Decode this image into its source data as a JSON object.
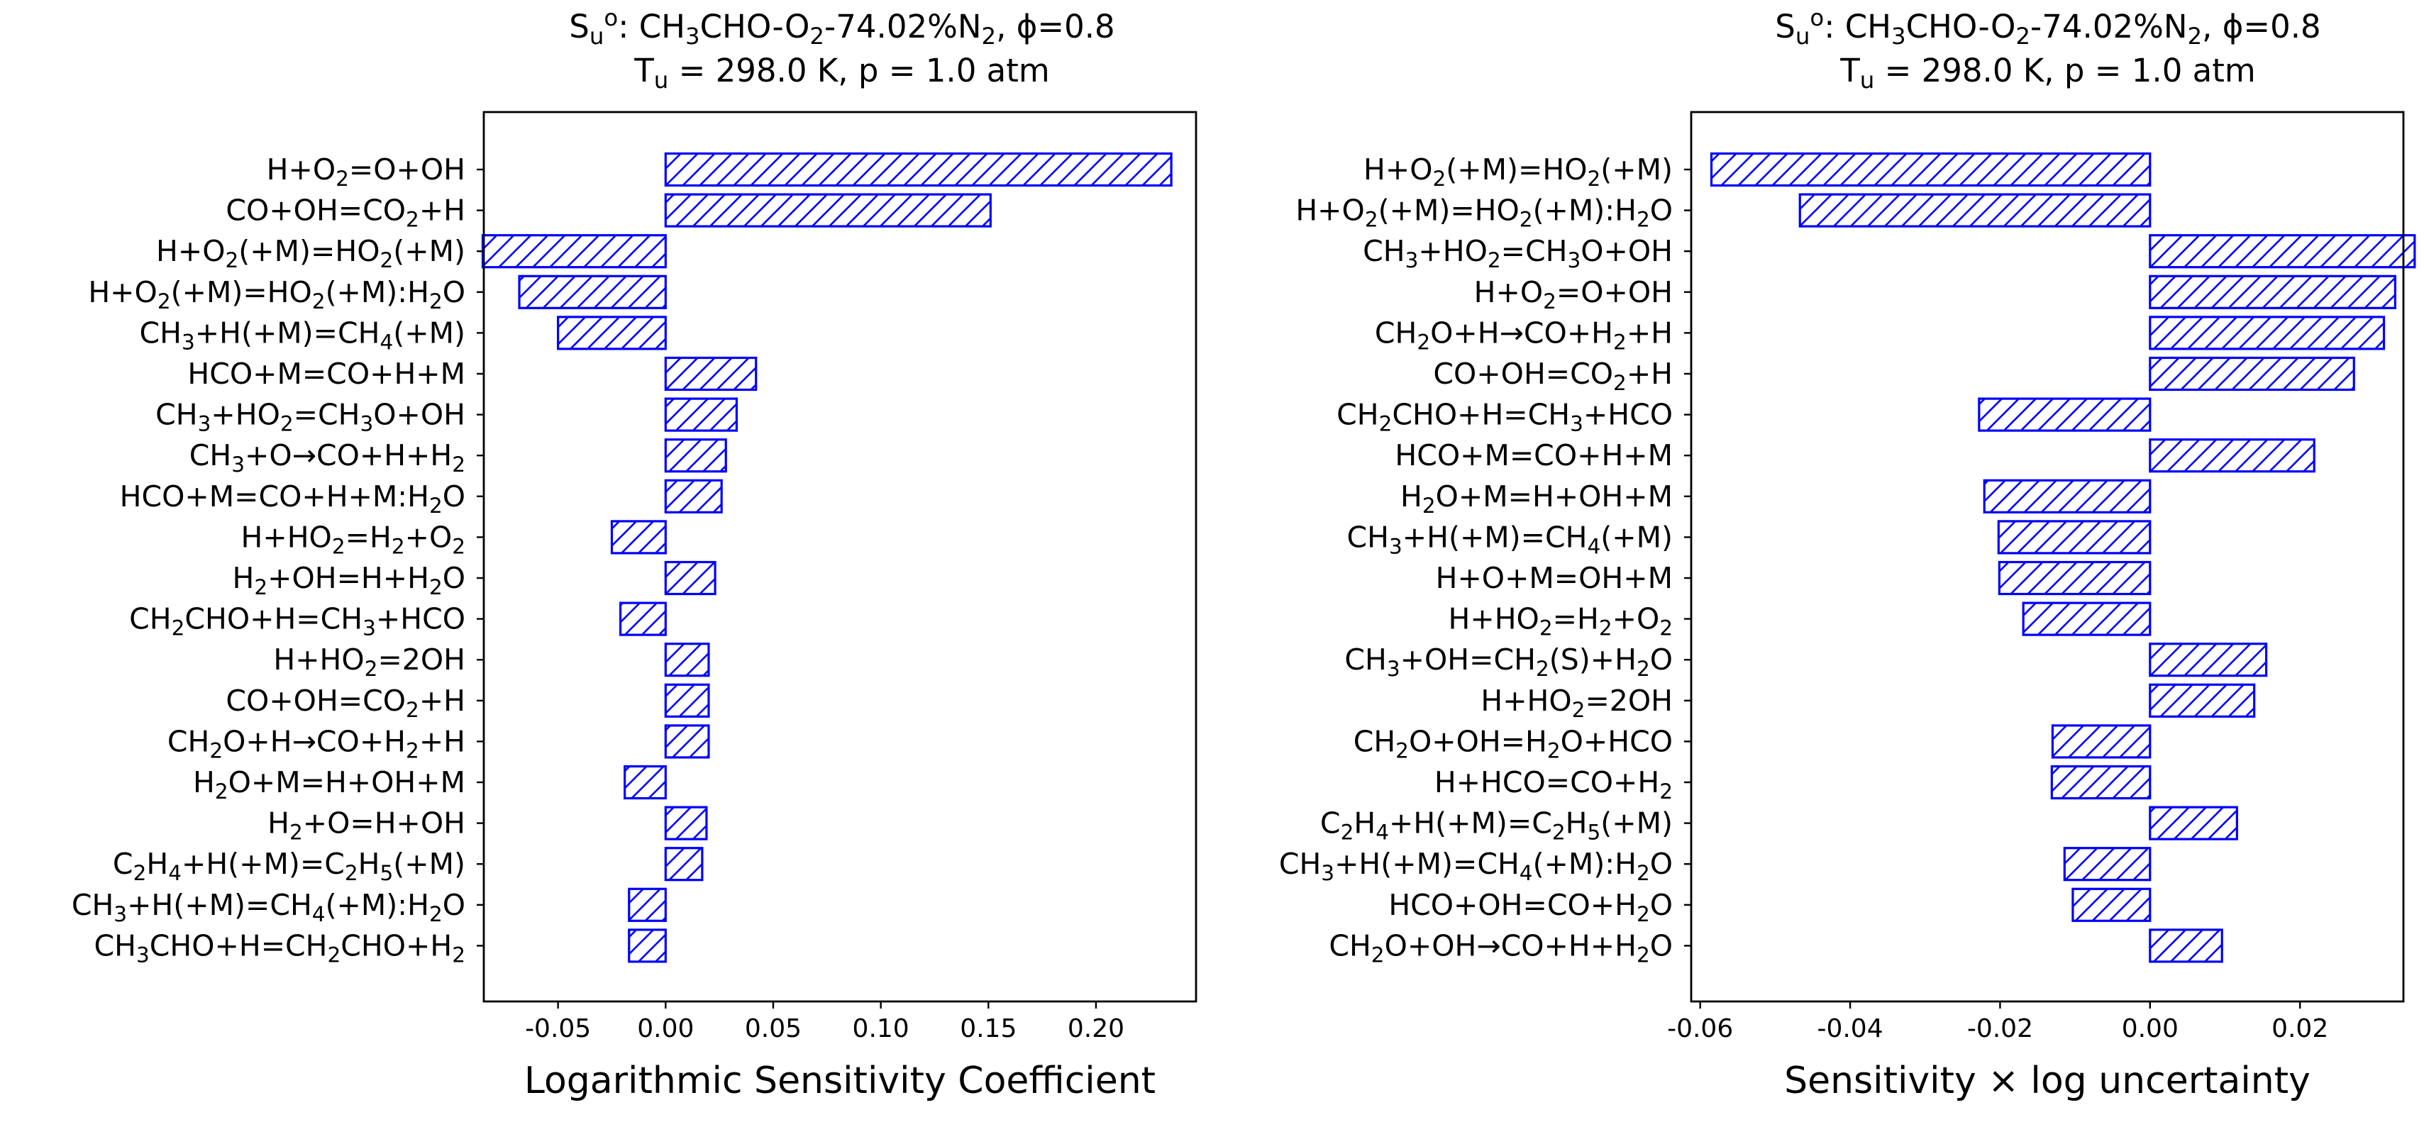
{
  "chart_data": [
    {
      "type": "bar",
      "orientation": "horizontal",
      "title_line1": "S_u^o: CH_3CHO-O_2-74.02%N_2, ϕ=0.8",
      "title_line2": "T_u = 298.0 K, p = 1.0 atm",
      "xlabel": "Logarithmic Sensitivity Coefficient",
      "ylabel": "",
      "xlim": [
        -0.0845,
        0.2465
      ],
      "xticks": [
        -0.05,
        0.0,
        0.05,
        0.1,
        0.15,
        0.2
      ],
      "xtick_labels": [
        "-0.05",
        "0.00",
        "0.05",
        "0.10",
        "0.15",
        "0.20"
      ],
      "bar_color": "#0000ff",
      "hatch": "diagonal",
      "grid": false,
      "categories": [
        "H+O_2=O+OH",
        "CO+OH=CO_2+H",
        "H+O_2(+M)=HO_2(+M)",
        "H+O_2(+M)=HO_2(+M):H_2O",
        "CH_3+H(+M)=CH_4(+M)",
        "HCO+M=CO+H+M",
        "CH_3+HO_2=CH_3O+OH",
        "CH_3+O→CO+H+H_2",
        "HCO+M=CO+H+M:H_2O",
        "H+HO_2=H_2+O_2",
        "H_2+OH=H+H_2O",
        "CH_2CHO+H=CH_3+HCO",
        "H+HO_2=2OH",
        "CO+OH=CO_2+H",
        "CH_2O+H→CO+H_2+H",
        "H_2O+M=H+OH+M",
        "H_2+O=H+OH",
        "C_2H_4+H(+M)=C_2H_5(+M)",
        "CH_3+H(+M)=CH_4(+M):H_2O",
        "CH_3CHO+H=CH_2CHO+H_2"
      ],
      "values": [
        0.235,
        0.151,
        -0.085,
        -0.068,
        -0.05,
        0.042,
        0.033,
        0.028,
        0.026,
        -0.025,
        0.023,
        -0.021,
        0.02,
        0.02,
        0.02,
        -0.019,
        0.019,
        0.017,
        -0.017,
        -0.017
      ]
    },
    {
      "type": "bar",
      "orientation": "horizontal",
      "title_line1": "S_u^o: CH_3CHO-O_2-74.02%N_2, ϕ=0.8",
      "title_line2": "T_u = 298.0 K, p = 1.0 atm",
      "xlabel": "Sensitivity × log uncertainty",
      "ylabel": "",
      "xlim": [
        -0.0612,
        0.0338
      ],
      "xticks": [
        -0.06,
        -0.04,
        -0.02,
        0.0,
        0.02
      ],
      "xtick_labels": [
        "-0.06",
        "-0.04",
        "-0.02",
        "0.00",
        "0.02"
      ],
      "bar_color": "#0000ff",
      "hatch": "diagonal",
      "grid": false,
      "categories": [
        "H+O_2(+M)=HO_2(+M)",
        "H+O_2(+M)=HO_2(+M):H_2O",
        "CH_3+HO_2=CH_3O+OH",
        "H+O_2=O+OH",
        "CH_2O+H→CO+H_2+H",
        "CO+OH=CO_2+H",
        "CH_2CHO+H=CH_3+HCO",
        "HCO+M=CO+H+M",
        "H_2O+M=H+OH+M",
        "CH_3+H(+M)=CH_4(+M)",
        "H+O+M=OH+M",
        "H+HO_2=H_2+O_2",
        "CH_3+OH=CH_2(S)+H_2O",
        "H+HO_2=2OH",
        "CH_2O+OH=H_2O+HCO",
        "H+HCO=CO+H_2",
        "C_2H_4+H(+M)=C_2H_5(+M)",
        "CH_3+H(+M)=CH_4(+M):H_2O",
        "HCO+OH=CO+H_2O",
        "CH_2O+OH→CO+H+H_2O"
      ],
      "values": [
        -0.0585,
        -0.0467,
        0.0353,
        0.0327,
        0.0312,
        0.0272,
        -0.0228,
        0.0219,
        -0.0221,
        -0.0202,
        -0.0201,
        -0.0169,
        0.0155,
        0.0139,
        -0.013,
        -0.0131,
        0.0116,
        -0.0114,
        -0.0103,
        0.0096
      ]
    }
  ]
}
